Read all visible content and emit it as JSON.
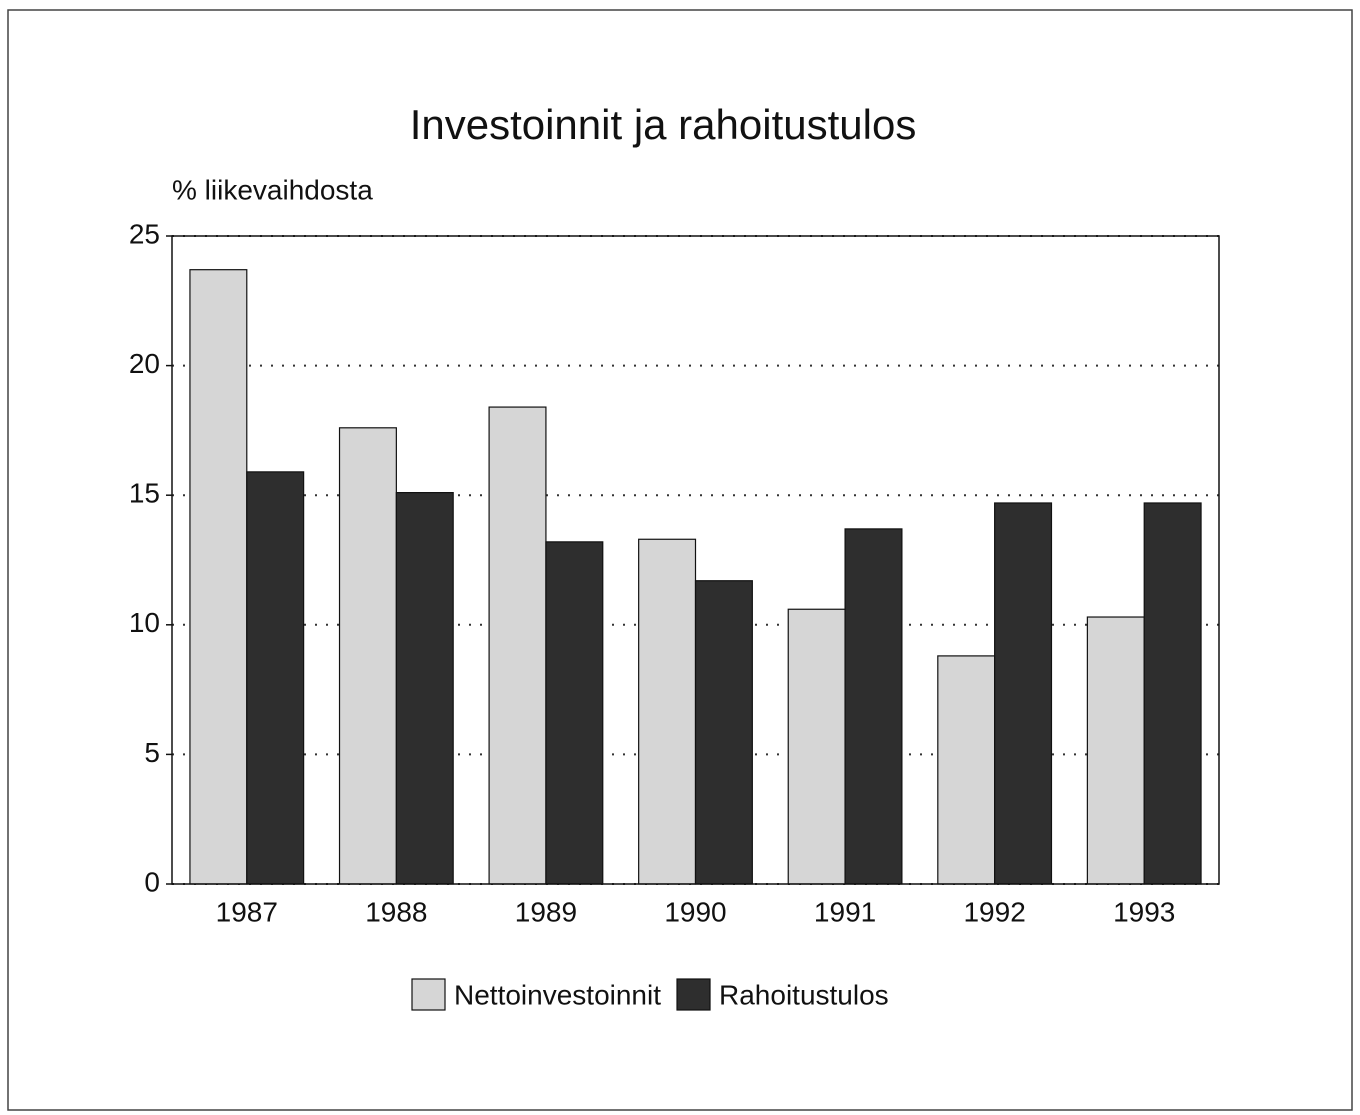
{
  "chart_data": {
    "type": "bar",
    "title": "Investoinnit ja rahoitustulos",
    "y_label": "% liikevaihdosta",
    "categories": [
      "1987",
      "1988",
      "1989",
      "1990",
      "1991",
      "1992",
      "1993"
    ],
    "series": [
      {
        "name": "Nettoinvestoinnit",
        "color": "#d6d6d6",
        "values": [
          23.7,
          17.6,
          18.4,
          13.3,
          10.6,
          8.8,
          10.3
        ]
      },
      {
        "name": "Rahoitustulos",
        "color": "#2e2e2e",
        "values": [
          15.9,
          15.1,
          13.2,
          11.7,
          13.7,
          14.7,
          14.7
        ]
      }
    ],
    "ylim": [
      0,
      25
    ],
    "yticks": [
      0,
      5,
      10,
      15,
      20,
      25
    ],
    "grid": true
  }
}
